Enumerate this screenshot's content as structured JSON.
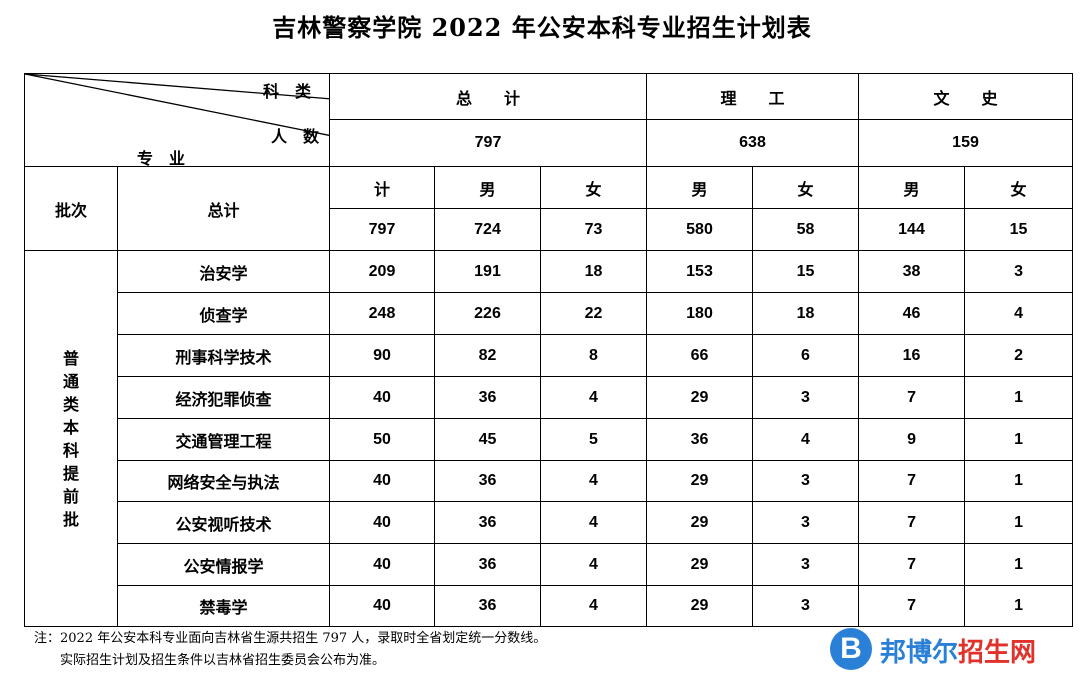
{
  "title": "吉林警察学院 2022 年公安本科专业招生计划表",
  "corner": {
    "top": "科　类",
    "mid": "人　数",
    "bottom": "专　业"
  },
  "header": {
    "groups": [
      {
        "label": "总　　计",
        "total": "797"
      },
      {
        "label": "理　　工",
        "total": "638"
      },
      {
        "label": "文　　史",
        "total": "159"
      }
    ],
    "batch_label": "批次",
    "total_label": "总计",
    "cols": [
      "计",
      "男",
      "女",
      "男",
      "女",
      "男",
      "女"
    ],
    "totals": [
      "797",
      "724",
      "73",
      "580",
      "58",
      "144",
      "15"
    ]
  },
  "batch": [
    "普",
    "通",
    "类",
    "本",
    "科",
    "提",
    "前",
    "批"
  ],
  "rows": [
    {
      "major": "治安学",
      "values": [
        "209",
        "191",
        "18",
        "153",
        "15",
        "38",
        "3"
      ]
    },
    {
      "major": "侦查学",
      "values": [
        "248",
        "226",
        "22",
        "180",
        "18",
        "46",
        "4"
      ]
    },
    {
      "major": "刑事科学技术",
      "values": [
        "90",
        "82",
        "8",
        "66",
        "6",
        "16",
        "2"
      ]
    },
    {
      "major": "经济犯罪侦查",
      "values": [
        "40",
        "36",
        "4",
        "29",
        "3",
        "7",
        "1"
      ]
    },
    {
      "major": "交通管理工程",
      "values": [
        "50",
        "45",
        "5",
        "36",
        "4",
        "9",
        "1"
      ]
    },
    {
      "major": "网络安全与执法",
      "values": [
        "40",
        "36",
        "4",
        "29",
        "3",
        "7",
        "1"
      ]
    },
    {
      "major": "公安视听技术",
      "values": [
        "40",
        "36",
        "4",
        "29",
        "3",
        "7",
        "1"
      ]
    },
    {
      "major": "公安情报学",
      "values": [
        "40",
        "36",
        "4",
        "29",
        "3",
        "7",
        "1"
      ]
    },
    {
      "major": "禁毒学",
      "values": [
        "40",
        "36",
        "4",
        "29",
        "3",
        "7",
        "1"
      ]
    }
  ],
  "note": {
    "line1": "注：2022 年公安本科专业面向吉林省生源共招生 797 人，录取时全省划定统一分数线。",
    "line2": "实际招生计划及招生条件以吉林省招生委员会公布为准。"
  },
  "watermark": {
    "letter": "B",
    "text": "邦博尔招生网",
    "accent": "#2a7fd6",
    "red": "#e0322a"
  }
}
